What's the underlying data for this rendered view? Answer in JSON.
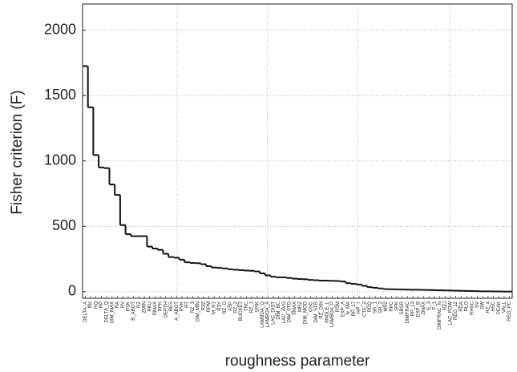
{
  "chart_data": {
    "type": "step",
    "y_label": "Fisher criterion (F)",
    "x_label": "roughness parameter",
    "categories": [
      "DELTA_A",
      "RK",
      "RQ",
      "RP",
      "DELTA_Q",
      "DIM_MAX",
      "RA",
      "RV",
      "RSK",
      "B_ABOT",
      "RZ",
      "ZMIN",
      "RKU",
      "RMAX",
      "RPK",
      "DEPTH",
      "BES",
      "A_ABOT",
      "RVK",
      "RT",
      "RZ_3",
      "DIM_MIN",
      "R3Z",
      "RPM",
      "M_R1",
      "R3Y",
      "RZ_D",
      "ASP",
      "RZ_2",
      "BUCKET",
      "TRC",
      "RZ_1",
      "SPIK",
      "LAMBDA_Q",
      "LAMBDA_A",
      "LAC_DIST",
      "DIM_BC",
      "LAC_AVG",
      "DIM_STD",
      "XMAX",
      "MRZ",
      "DIM_MOD",
      "OSC",
      "DIM_STR",
      "RZ_DIN",
      "ANGLE_L",
      "LAMBDA_P",
      "RSM",
      "EXP_A",
      "N_MA",
      "RP_17",
      "RP_7",
      "CTE_Z",
      "RDQ",
      "SR_1",
      "SR_2",
      "MR2",
      "RPC",
      "SPK",
      "SBSR",
      "DIMFRAC",
      "RP_13",
      "EXP_B",
      "ZMAX",
      "E_3",
      "F_1",
      "DIMFRAC_N",
      "RZJ",
      "LAC_POW",
      "REG_12",
      "RDA",
      "RLO",
      "RHSC",
      "SV",
      "SW",
      "RZ_4",
      "HSC",
      "PEAK",
      "VALL",
      "REG_PC"
    ],
    "values": [
      1725,
      1410,
      1045,
      950,
      945,
      820,
      740,
      510,
      440,
      425,
      425,
      425,
      345,
      330,
      320,
      290,
      265,
      260,
      245,
      225,
      220,
      218,
      210,
      195,
      185,
      182,
      178,
      172,
      168,
      165,
      162,
      160,
      155,
      140,
      125,
      115,
      110,
      110,
      105,
      100,
      97,
      95,
      90,
      88,
      85,
      85,
      83,
      82,
      78,
      65,
      60,
      55,
      45,
      35,
      30,
      25,
      20,
      19,
      18,
      17,
      16,
      15,
      15,
      14,
      13,
      12,
      11,
      10,
      9,
      8,
      7,
      6,
      5,
      4,
      3,
      3,
      2,
      2,
      1,
      1
    ],
    "color": "#111111",
    "ylim": [
      -50,
      2200
    ],
    "yticks": [
      0,
      500,
      1000,
      1500,
      2000
    ],
    "grid": true
  }
}
